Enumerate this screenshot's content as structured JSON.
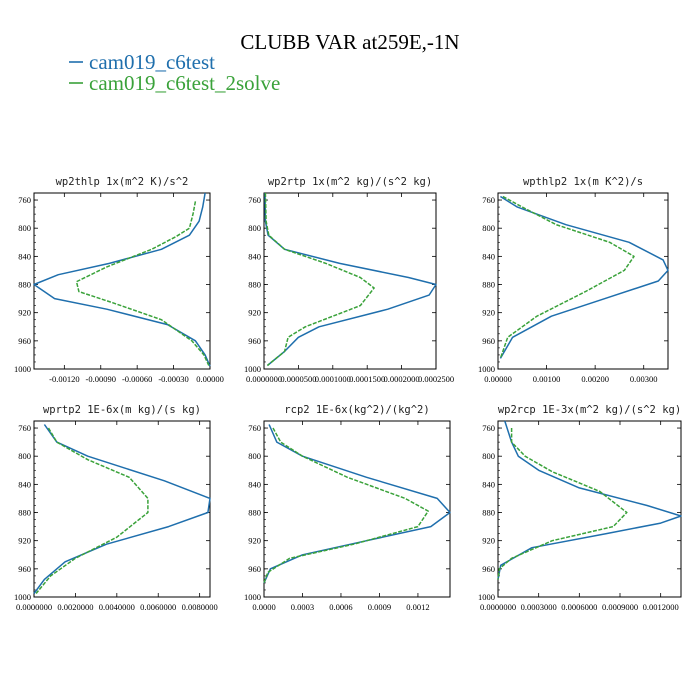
{
  "figure": {
    "title": "CLUBB VAR at259E,-1N",
    "legend": [
      {
        "label": "cam019_c6test",
        "color": "#1f6fad",
        "style": "solid"
      },
      {
        "label": "cam019_c6test_2solve",
        "color": "#3aa23a",
        "style": "dashed"
      }
    ]
  },
  "chart_data": [
    {
      "type": "line",
      "title": "wp2thlp   1x(m^2 K)/s^2",
      "xlim": [
        -0.00145,
        0.0
      ],
      "ylim": [
        750,
        1000
      ],
      "xticks": [
        -0.0012,
        -0.0009,
        -0.0006,
        -0.0003,
        0.0
      ],
      "xtick_labels": [
        "-0.00120",
        "-0.00090",
        "-0.00060",
        "-0.00030",
        "0.00000"
      ],
      "yticks": [
        760,
        800,
        840,
        880,
        920,
        960,
        1000
      ],
      "series": [
        {
          "name": "cam019_c6test",
          "points": [
            [
              -4e-05,
              750
            ],
            [
              -6e-05,
              770
            ],
            [
              -9e-05,
              790
            ],
            [
              -0.00017,
              810
            ],
            [
              -0.0004,
              830
            ],
            [
              -0.00083,
              850
            ],
            [
              -0.00125,
              866
            ],
            [
              -0.00145,
              880
            ],
            [
              -0.00128,
              900
            ],
            [
              -0.00085,
              915
            ],
            [
              -0.00035,
              937
            ],
            [
              -0.00012,
              960
            ],
            [
              -4e-05,
              980
            ],
            [
              0.0,
              996
            ]
          ]
        },
        {
          "name": "cam019_c6test_2solve",
          "points": [
            [
              -0.00012,
              762
            ],
            [
              -0.00014,
              780
            ],
            [
              -0.00017,
              800
            ],
            [
              -0.00028,
              812
            ],
            [
              -0.00048,
              830
            ],
            [
              -0.00085,
              855
            ],
            [
              -0.0011,
              876
            ],
            [
              -0.00108,
              890
            ],
            [
              -0.0008,
              906
            ],
            [
              -0.0004,
              930
            ],
            [
              -0.00015,
              960
            ],
            [
              -5e-05,
              980
            ],
            [
              -1e-05,
              995
            ]
          ]
        }
      ]
    },
    {
      "type": "line",
      "title": "wp2rtp   1x(m^2 kg)/(s^2 kg)",
      "xlim": [
        0.0,
        0.00025
      ],
      "ylim": [
        750,
        1000
      ],
      "xticks": [
        0.0,
        5e-05,
        0.0001,
        0.00015,
        0.0002,
        0.00025
      ],
      "xtick_labels": [
        "0.0000000",
        "0.0000500",
        "0.0001000",
        "0.0001500",
        "0.0002000",
        "0.0002500"
      ],
      "yticks": [
        760,
        800,
        840,
        880,
        920,
        960,
        1000
      ],
      "series": [
        {
          "name": "cam019_c6test",
          "points": [
            [
              1.5e-06,
              750
            ],
            [
              2e-06,
              790
            ],
            [
              6e-06,
              810
            ],
            [
              3e-05,
              830
            ],
            [
              0.00011,
              850
            ],
            [
              0.00021,
              870
            ],
            [
              0.00025,
              880
            ],
            [
              0.00024,
              895
            ],
            [
              0.00018,
              915
            ],
            [
              8e-05,
              940
            ],
            [
              5e-05,
              955
            ],
            [
              3e-05,
              975
            ],
            [
              5e-06,
              995
            ]
          ]
        },
        {
          "name": "cam019_c6test_2solve",
          "points": [
            [
              2e-06,
              750
            ],
            [
              3e-06,
              790
            ],
            [
              7e-06,
              810
            ],
            [
              3e-05,
              830
            ],
            [
              9e-05,
              850
            ],
            [
              0.00014,
              870
            ],
            [
              0.00016,
              885
            ],
            [
              0.00014,
              910
            ],
            [
              6e-05,
              940
            ],
            [
              3.5e-05,
              955
            ],
            [
              3e-05,
              975
            ],
            [
              5e-06,
              995
            ]
          ]
        }
      ]
    },
    {
      "type": "line",
      "title": "wpthlp2   1x(m K^2)/s",
      "xlim": [
        0.0,
        0.0035
      ],
      "ylim": [
        750,
        1000
      ],
      "xticks": [
        0.0,
        0.001,
        0.002,
        0.003
      ],
      "xtick_labels": [
        "0.00000",
        "0.00100",
        "0.00200",
        "0.00300"
      ],
      "yticks": [
        760,
        800,
        840,
        880,
        920,
        960,
        1000
      ],
      "series": [
        {
          "name": "cam019_c6test",
          "points": [
            [
              5e-05,
              755
            ],
            [
              0.0004,
              770
            ],
            [
              0.0014,
              795
            ],
            [
              0.0027,
              820
            ],
            [
              0.0034,
              845
            ],
            [
              0.0035,
              860
            ],
            [
              0.0033,
              875
            ],
            [
              0.0022,
              900
            ],
            [
              0.0011,
              925
            ],
            [
              0.0003,
              955
            ],
            [
              5e-05,
              985
            ]
          ]
        },
        {
          "name": "cam019_c6test_2solve",
          "points": [
            [
              0.0001,
              755
            ],
            [
              0.0005,
              770
            ],
            [
              0.0012,
              795
            ],
            [
              0.0023,
              820
            ],
            [
              0.0028,
              840
            ],
            [
              0.0026,
              860
            ],
            [
              0.0018,
              890
            ],
            [
              0.0008,
              925
            ],
            [
              0.0002,
              955
            ],
            [
              5e-05,
              985
            ]
          ]
        }
      ]
    },
    {
      "type": "line",
      "title": "wprtp2   1E-6x(m kg)/(s kg)",
      "xlim": [
        0.0,
        0.0085
      ],
      "ylim": [
        750,
        1000
      ],
      "xticks": [
        0.0,
        0.002,
        0.004,
        0.006,
        0.008
      ],
      "xtick_labels": [
        "0.0000000",
        "0.0020000",
        "0.0040000",
        "0.0060000",
        "0.0080000"
      ],
      "yticks": [
        760,
        800,
        840,
        880,
        920,
        960,
        1000
      ],
      "series": [
        {
          "name": "cam019_c6test",
          "points": [
            [
              0.0005,
              755
            ],
            [
              0.0011,
              780
            ],
            [
              0.0026,
              800
            ],
            [
              0.0063,
              835
            ],
            [
              0.0085,
              860
            ],
            [
              0.0084,
              880
            ],
            [
              0.0065,
              900
            ],
            [
              0.0035,
              925
            ],
            [
              0.0015,
              950
            ],
            [
              0.0005,
              975
            ],
            [
              0.0,
              995
            ]
          ]
        },
        {
          "name": "cam019_c6test_2solve",
          "points": [
            [
              0.0007,
              760
            ],
            [
              0.0011,
              780
            ],
            [
              0.0026,
              805
            ],
            [
              0.0046,
              830
            ],
            [
              0.0055,
              860
            ],
            [
              0.0055,
              880
            ],
            [
              0.004,
              915
            ],
            [
              0.002,
              945
            ],
            [
              0.0008,
              970
            ],
            [
              0.0001,
              995
            ]
          ]
        }
      ]
    },
    {
      "type": "line",
      "title": "rcp2   1E-6x(kg^2)/(kg^2)",
      "xlim": [
        0.0,
        0.00145
      ],
      "ylim": [
        750,
        1000
      ],
      "xticks": [
        0.0,
        0.0003,
        0.0006,
        0.0009,
        0.0012
      ],
      "xtick_labels": [
        "0.0000",
        "0.0003",
        "0.0006",
        "0.0009",
        "0.0012"
      ],
      "yticks": [
        760,
        800,
        840,
        880,
        920,
        960,
        1000
      ],
      "series": [
        {
          "name": "cam019_c6test",
          "points": [
            [
              4e-05,
              755
            ],
            [
              0.0001,
              780
            ],
            [
              0.0003,
              800
            ],
            [
              0.0008,
              830
            ],
            [
              0.00135,
              860
            ],
            [
              0.00145,
              880
            ],
            [
              0.0013,
              900
            ],
            [
              0.0008,
              920
            ],
            [
              0.0003,
              940
            ],
            [
              5e-05,
              960
            ],
            [
              0.0,
              980
            ]
          ]
        },
        {
          "name": "cam019_c6test_2solve",
          "points": [
            [
              7e-05,
              760
            ],
            [
              0.00013,
              780
            ],
            [
              0.0003,
              800
            ],
            [
              0.00065,
              830
            ],
            [
              0.0011,
              860
            ],
            [
              0.00128,
              878
            ],
            [
              0.0012,
              900
            ],
            [
              0.0007,
              925
            ],
            [
              0.0002,
              945
            ],
            [
              3e-05,
              965
            ],
            [
              0.0,
              980
            ]
          ]
        }
      ]
    },
    {
      "type": "line",
      "title": "wp2rcp   1E-3x(m^2 kg)/(s^2 kg)",
      "xlim": [
        0.0,
        0.00135
      ],
      "ylim": [
        750,
        1000
      ],
      "xticks": [
        0.0,
        0.0003,
        0.0006,
        0.0009,
        0.0012
      ],
      "xtick_labels": [
        "0.0000000",
        "0.0003000",
        "0.0006000",
        "0.0009000",
        "0.0012000"
      ],
      "yticks": [
        760,
        800,
        840,
        880,
        920,
        960,
        1000
      ],
      "series": [
        {
          "name": "cam019_c6test",
          "points": [
            [
              5e-05,
              750
            ],
            [
              0.0001,
              780
            ],
            [
              0.00015,
              800
            ],
            [
              0.0003,
              820
            ],
            [
              0.0006,
              845
            ],
            [
              0.0011,
              870
            ],
            [
              0.00135,
              885
            ],
            [
              0.0012,
              895
            ],
            [
              0.0008,
              910
            ],
            [
              0.00025,
              930
            ],
            [
              2e-05,
              955
            ],
            [
              0.0,
              975
            ]
          ]
        },
        {
          "name": "cam019_c6test_2solve",
          "points": [
            [
              0.0001,
              760
            ],
            [
              0.0001,
              780
            ],
            [
              0.0002,
              800
            ],
            [
              0.0004,
              822
            ],
            [
              0.00075,
              850
            ],
            [
              0.00095,
              880
            ],
            [
              0.00085,
              900
            ],
            [
              0.0004,
              920
            ],
            [
              0.0001,
              945
            ],
            [
              1e-05,
              960
            ],
            [
              0.0,
              975
            ]
          ]
        }
      ]
    }
  ]
}
